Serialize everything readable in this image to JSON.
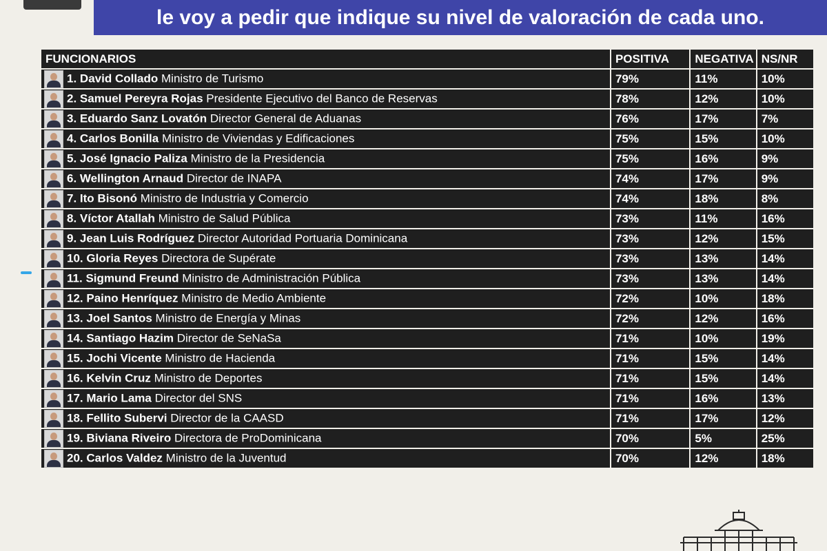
{
  "header": {
    "line1": "",
    "line2": "le voy a pedir que indique su nivel de valoración de cada uno."
  },
  "table": {
    "columns": [
      "FUNCIONARIOS",
      "POSITIVA",
      "NEGATIVA",
      "NS/NR"
    ],
    "rows": [
      {
        "rank": "1.",
        "name": "David Collado",
        "title": "Ministro de Turismo",
        "positiva": "79%",
        "negativa": "11%",
        "nsnr": "10%"
      },
      {
        "rank": "2.",
        "name": "Samuel Pereyra Rojas",
        "title": "Presidente Ejecutivo del Banco de Reservas",
        "positiva": "78%",
        "negativa": "12%",
        "nsnr": "10%"
      },
      {
        "rank": "3.",
        "name": "Eduardo Sanz Lovatón",
        "title": "Director General de Aduanas",
        "positiva": "76%",
        "negativa": "17%",
        "nsnr": "7%"
      },
      {
        "rank": "4.",
        "name": "Carlos Bonilla",
        "title": "Ministro de Viviendas y Edificaciones",
        "positiva": "75%",
        "negativa": "15%",
        "nsnr": "10%"
      },
      {
        "rank": "5.",
        "name": "José Ignacio Paliza",
        "title": "Ministro de la Presidencia",
        "positiva": "75%",
        "negativa": "16%",
        "nsnr": "9%"
      },
      {
        "rank": "6.",
        "name": "Wellington Arnaud",
        "title": " Director de INAPA",
        "positiva": "74%",
        "negativa": "17%",
        "nsnr": "9%"
      },
      {
        "rank": "7.",
        "name": "Ito Bisonó",
        "title": "Ministro de Industria y Comercio",
        "positiva": "74%",
        "negativa": "18%",
        "nsnr": "8%"
      },
      {
        "rank": "8.",
        "name": "Víctor Atallah",
        "title": "Ministro de Salud Pública",
        "positiva": "73%",
        "negativa": "11%",
        "nsnr": "16%"
      },
      {
        "rank": "9.",
        "name": "Jean Luis Rodríguez",
        "title": "Director Autoridad Portuaria Dominicana",
        "positiva": "73%",
        "negativa": "12%",
        "nsnr": "15%"
      },
      {
        "rank": "10.",
        "name": "Gloria Reyes",
        "title": "Directora de Supérate",
        "positiva": "73%",
        "negativa": "13%",
        "nsnr": "14%"
      },
      {
        "rank": "11.",
        "name": "Sigmund Freund",
        "title": "Ministro de Administración Pública",
        "positiva": "73%",
        "negativa": "13%",
        "nsnr": "14%"
      },
      {
        "rank": "12.",
        "name": "Paino Henríquez",
        "title": "Ministro de Medio Ambiente",
        "positiva": "72%",
        "negativa": "10%",
        "nsnr": "18%"
      },
      {
        "rank": "13.",
        "name": "Joel Santos",
        "title": "Ministro de Energía y Minas",
        "positiva": "72%",
        "negativa": "12%",
        "nsnr": "16%"
      },
      {
        "rank": "14.",
        "name": "Santiago Hazim",
        "title": "Director de SeNaSa",
        "positiva": "71%",
        "negativa": "10%",
        "nsnr": "19%"
      },
      {
        "rank": "15.",
        "name": "Jochi Vicente",
        "title": "Ministro de Hacienda",
        "positiva": "71%",
        "negativa": "15%",
        "nsnr": "14%"
      },
      {
        "rank": "16.",
        "name": "Kelvin Cruz",
        "title": "Ministro de Deportes",
        "positiva": "71%",
        "negativa": "15%",
        "nsnr": "14%"
      },
      {
        "rank": "17.",
        "name": "Mario Lama",
        "title": "Director del SNS",
        "positiva": "71%",
        "negativa": "16%",
        "nsnr": "13%"
      },
      {
        "rank": "18.",
        "name": "Fellito Subervi",
        "title": "Director de la CAASD",
        "positiva": "71%",
        "negativa": "17%",
        "nsnr": "12%"
      },
      {
        "rank": "19.",
        "name": "Biviana Riveiro",
        "title": "Directora de ProDominicana",
        "positiva": "70%",
        "negativa": "5%",
        "nsnr": "25%"
      },
      {
        "rank": "20.",
        "name": "Carlos Valdez",
        "title": "Ministro de la Juventud",
        "positiva": "70%",
        "negativa": "12%",
        "nsnr": "18%"
      }
    ]
  },
  "colors": {
    "banner": "#3f45a8",
    "cell": "#1f1f1f",
    "background": "#f1efe9",
    "accent_dash": "#35a6e8"
  },
  "icons": {
    "avatar": "person-photo-icon",
    "logo": "capitol-building-icon"
  }
}
